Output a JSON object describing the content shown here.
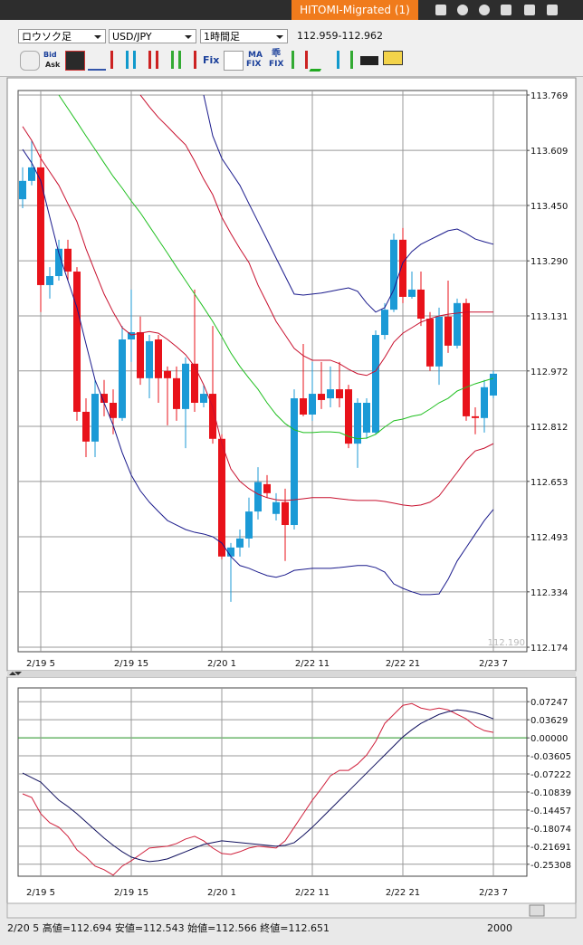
{
  "window": {
    "tab": "HITOMI-Migrated (1)"
  },
  "toolbar": {
    "chart_type": "ロウソク足",
    "symbol": "USD/JPY",
    "timeframe": "1時間足",
    "quote": "112.959-112.962",
    "icon_labels": [
      "Bid",
      "Ask",
      "Fix",
      "MA",
      "FIX",
      "乖",
      "FIX"
    ]
  },
  "chart_data": [
    {
      "type": "candlestick",
      "grid": true,
      "up_color": "#1b9ad6",
      "down_color": "#e8121a",
      "price_tag": "112.190",
      "categories": [
        null,
        null,
        "2/19 5",
        null,
        null,
        null,
        null,
        null,
        null,
        null,
        null,
        null,
        "2/19 15",
        null,
        null,
        null,
        null,
        null,
        null,
        null,
        null,
        null,
        "2/20 1",
        null,
        null,
        null,
        null,
        null,
        null,
        null,
        null,
        null,
        "2/22 11",
        null,
        null,
        null,
        null,
        null,
        null,
        null,
        null,
        null,
        "2/22 21",
        null,
        null,
        null,
        null,
        null,
        null,
        null,
        null,
        null,
        "2/23 7"
      ],
      "open": [
        113.468,
        113.521,
        113.56,
        113.22,
        113.246,
        113.325,
        113.259,
        112.854,
        112.768,
        112.906,
        112.88,
        112.836,
        113.063,
        113.084,
        112.951,
        113.063,
        112.972,
        112.951,
        112.862,
        112.993,
        112.88,
        112.906,
        112.776,
        112.436,
        112.462,
        112.488,
        112.566,
        112.645,
        112.559,
        112.593,
        112.527,
        112.893,
        112.846,
        112.906,
        112.893,
        112.919,
        112.919,
        112.762,
        112.794,
        112.794,
        113.076,
        113.149,
        113.351,
        113.186,
        113.207,
        113.123,
        112.985,
        113.129,
        113.045,
        113.168,
        112.841,
        112.836,
        112.901
      ],
      "high": [
        113.56,
        113.638,
        113.599,
        113.272,
        113.351,
        113.351,
        113.272,
        112.893,
        112.946,
        112.946,
        112.919,
        113.102,
        113.207,
        113.129,
        113.076,
        113.076,
        112.985,
        112.985,
        113.011,
        113.207,
        112.932,
        113.102,
        112.789,
        112.475,
        112.514,
        112.606,
        112.694,
        112.671,
        112.619,
        112.632,
        112.919,
        113.05,
        112.998,
        112.998,
        112.985,
        112.998,
        112.932,
        112.893,
        112.893,
        113.089,
        113.168,
        113.369,
        113.385,
        113.259,
        113.259,
        113.142,
        113.155,
        113.233,
        113.181,
        113.181,
        112.867,
        112.946,
        112.972
      ],
      "low": [
        113.442,
        113.508,
        113.142,
        113.181,
        113.233,
        113.233,
        112.828,
        112.723,
        112.723,
        112.841,
        112.789,
        112.828,
        112.998,
        112.932,
        112.893,
        112.88,
        112.815,
        112.828,
        112.749,
        112.854,
        112.867,
        112.762,
        112.428,
        112.305,
        112.436,
        112.462,
        112.543,
        112.606,
        112.54,
        112.423,
        112.514,
        112.841,
        112.828,
        112.862,
        112.867,
        112.867,
        112.749,
        112.692,
        112.776,
        112.789,
        113.063,
        113.142,
        113.168,
        113.181,
        113.102,
        112.972,
        112.932,
        113.024,
        113.037,
        112.828,
        112.789,
        112.794,
        112.893
      ],
      "close": [
        113.521,
        113.56,
        113.22,
        113.246,
        113.325,
        113.259,
        112.854,
        112.768,
        112.906,
        112.88,
        112.836,
        113.063,
        113.084,
        112.951,
        113.058,
        112.951,
        112.951,
        112.862,
        112.993,
        112.88,
        112.906,
        112.776,
        112.436,
        112.462,
        112.488,
        112.566,
        112.651,
        112.619,
        112.593,
        112.527,
        112.893,
        112.846,
        112.906,
        112.888,
        112.919,
        112.893,
        112.762,
        112.88,
        112.88,
        113.076,
        113.149,
        113.351,
        113.186,
        113.207,
        113.123,
        112.985,
        113.129,
        113.045,
        113.168,
        112.841,
        112.836,
        112.925,
        112.964
      ],
      "series": [
        {
          "color": "#1a1a8c",
          "values": [
            null,
            null,
            null,
            null,
            null,
            null,
            null,
            null,
            null,
            null,
            null,
            null,
            null,
            null,
            null,
            null,
            null,
            null,
            null,
            null,
            113.769,
            113.651,
            113.586,
            113.547,
            113.508,
            113.455,
            113.403,
            113.351,
            113.298,
            113.246,
            113.194,
            113.191,
            113.194,
            113.197,
            113.202,
            113.207,
            113.212,
            113.202,
            113.168,
            113.142,
            113.155,
            113.207,
            113.285,
            113.317,
            113.338,
            113.351,
            113.364,
            113.377,
            113.382,
            113.369,
            113.353,
            113.345,
            113.338
          ]
        },
        {
          "color": "#c8102e",
          "values": [
            null,
            null,
            null,
            null,
            null,
            null,
            null,
            null,
            null,
            null,
            null,
            null,
            null,
            113.769,
            113.735,
            113.704,
            113.678,
            113.651,
            113.625,
            113.578,
            113.526,
            113.481,
            113.416,
            113.369,
            113.325,
            113.285,
            113.22,
            113.168,
            113.115,
            113.076,
            113.037,
            113.016,
            113.003,
            113.003,
            113.003,
            112.993,
            112.977,
            112.964,
            112.959,
            112.972,
            113.011,
            113.055,
            113.081,
            113.097,
            113.113,
            113.123,
            113.131,
            113.136,
            113.139,
            113.142,
            113.142,
            113.142,
            113.142
          ]
        },
        {
          "color": "#1fbf1f",
          "values": [
            null,
            null,
            null,
            null,
            113.769,
            113.73,
            113.691,
            113.651,
            113.612,
            113.573,
            113.534,
            113.5,
            113.463,
            113.429,
            113.39,
            113.351,
            113.312,
            113.272,
            113.233,
            113.194,
            113.155,
            113.115,
            113.071,
            113.024,
            112.985,
            112.951,
            112.919,
            112.88,
            112.846,
            112.82,
            112.802,
            112.794,
            112.794,
            112.796,
            112.796,
            112.794,
            112.783,
            112.776,
            112.778,
            112.789,
            112.81,
            112.828,
            112.833,
            112.841,
            112.846,
            112.862,
            112.88,
            112.893,
            112.914,
            112.925,
            112.935,
            112.943,
            112.951
          ]
        },
        {
          "color": "#c8102e",
          "values": [
            113.678,
            113.638,
            113.586,
            113.547,
            113.508,
            113.455,
            113.403,
            113.325,
            113.259,
            113.194,
            113.142,
            113.097,
            113.076,
            113.081,
            113.086,
            113.081,
            113.063,
            113.042,
            113.019,
            112.985,
            112.932,
            112.867,
            112.762,
            112.689,
            112.653,
            112.632,
            112.616,
            112.606,
            112.6,
            112.598,
            112.6,
            112.603,
            112.606,
            112.606,
            112.606,
            112.603,
            112.6,
            112.598,
            112.598,
            112.598,
            112.595,
            112.59,
            112.585,
            112.582,
            112.585,
            112.593,
            112.611,
            112.645,
            112.679,
            112.715,
            112.741,
            112.749,
            112.762
          ]
        },
        {
          "color": "#1a1a8c",
          "values": [
            113.612,
            113.573,
            113.521,
            113.416,
            113.312,
            113.233,
            113.155,
            113.05,
            112.946,
            112.88,
            112.815,
            112.736,
            112.671,
            112.626,
            112.593,
            112.566,
            112.54,
            112.527,
            112.514,
            112.506,
            112.501,
            112.493,
            112.475,
            112.436,
            112.41,
            112.402,
            112.391,
            112.381,
            112.376,
            112.383,
            112.396,
            112.399,
            112.402,
            112.402,
            112.402,
            112.404,
            112.407,
            112.41,
            112.41,
            112.404,
            112.391,
            112.357,
            112.344,
            112.334,
            112.326,
            112.326,
            112.328,
            112.37,
            112.423,
            112.462,
            112.501,
            112.54,
            112.572
          ]
        }
      ],
      "ylim": [
        112.161,
        113.782
      ],
      "yticks": [
        113.769,
        113.609,
        {
          "value": 113.45,
          "label": "113.450"
        },
        {
          "value": 113.29,
          "label": "113.290"
        },
        113.131,
        112.972,
        112.812,
        112.653,
        112.493,
        112.334,
        112.174
      ]
    },
    {
      "type": "line",
      "grid": true,
      "zero_line_color": "#1f8f1f",
      "categories": [
        null,
        null,
        "2/19 5",
        null,
        null,
        null,
        null,
        null,
        null,
        null,
        null,
        null,
        "2/19 15",
        null,
        null,
        null,
        null,
        null,
        null,
        null,
        null,
        null,
        "2/20 1",
        null,
        null,
        null,
        null,
        null,
        null,
        null,
        null,
        null,
        "2/22 11",
        null,
        null,
        null,
        null,
        null,
        null,
        null,
        null,
        null,
        "2/22 21",
        null,
        null,
        null,
        null,
        null,
        null,
        null,
        null,
        null,
        "2/23 7"
      ],
      "series": [
        {
          "color": "#d0213c",
          "values": [
            -0.1121,
            -0.1194,
            -0.1519,
            -0.17,
            -0.179,
            -0.1971,
            -0.2243,
            -0.2387,
            -0.2568,
            -0.264,
            -0.2749,
            -0.2568,
            -0.246,
            -0.2333,
            -0.2206,
            -0.2188,
            -0.217,
            -0.2116,
            -0.2026,
            -0.1971,
            -0.2062,
            -0.2206,
            -0.2315,
            -0.2333,
            -0.2279,
            -0.2206,
            -0.217,
            -0.2188,
            -0.2206,
            -0.2062,
            -0.179,
            -0.1519,
            -0.1248,
            -0.1013,
            -0.076,
            -0.0651,
            -0.0651,
            -0.0524,
            -0.0344,
            -0.0072,
            0.0289,
            0.047,
            0.0651,
            0.0687,
            0.0597,
            0.0561,
            0.0597,
            0.0561,
            0.047,
            0.038,
            0.0235,
            0.0145,
            0.0109
          ]
        },
        {
          "color": "#10105e",
          "values": [
            -0.0705,
            -0.0796,
            -0.0886,
            -0.1067,
            -0.1248,
            -0.1374,
            -0.1519,
            -0.1682,
            -0.1845,
            -0.2007,
            -0.2152,
            -0.2279,
            -0.2387,
            -0.2441,
            -0.2478,
            -0.246,
            -0.2423,
            -0.2351,
            -0.2279,
            -0.2206,
            -0.2134,
            -0.2098,
            -0.2062,
            -0.208,
            -0.2098,
            -0.2116,
            -0.2134,
            -0.2152,
            -0.217,
            -0.2152,
            -0.2098,
            -0.1953,
            -0.179,
            -0.161,
            -0.1429,
            -0.1248,
            -0.1067,
            -0.0886,
            -0.0705,
            -0.0524,
            -0.0344,
            -0.0163,
            0.0018,
            0.0163,
            0.0289,
            0.038,
            0.047,
            0.0524,
            0.0561,
            0.0543,
            0.0506,
            0.0452,
            0.038
          ]
        }
      ],
      "ylim": [
        -0.277,
        0.1
      ],
      "yticks": [
        0.07247,
        0.03629,
        {
          "value": 0,
          "label": "0.00000"
        },
        -0.03605,
        -0.07222,
        -0.10839,
        -0.14457,
        -0.18074,
        -0.21691,
        -0.25308
      ]
    }
  ],
  "status": {
    "text": "2/20 5 高値=112.694 安値=112.543 始値=112.566 終値=112.651",
    "count": "2000"
  }
}
